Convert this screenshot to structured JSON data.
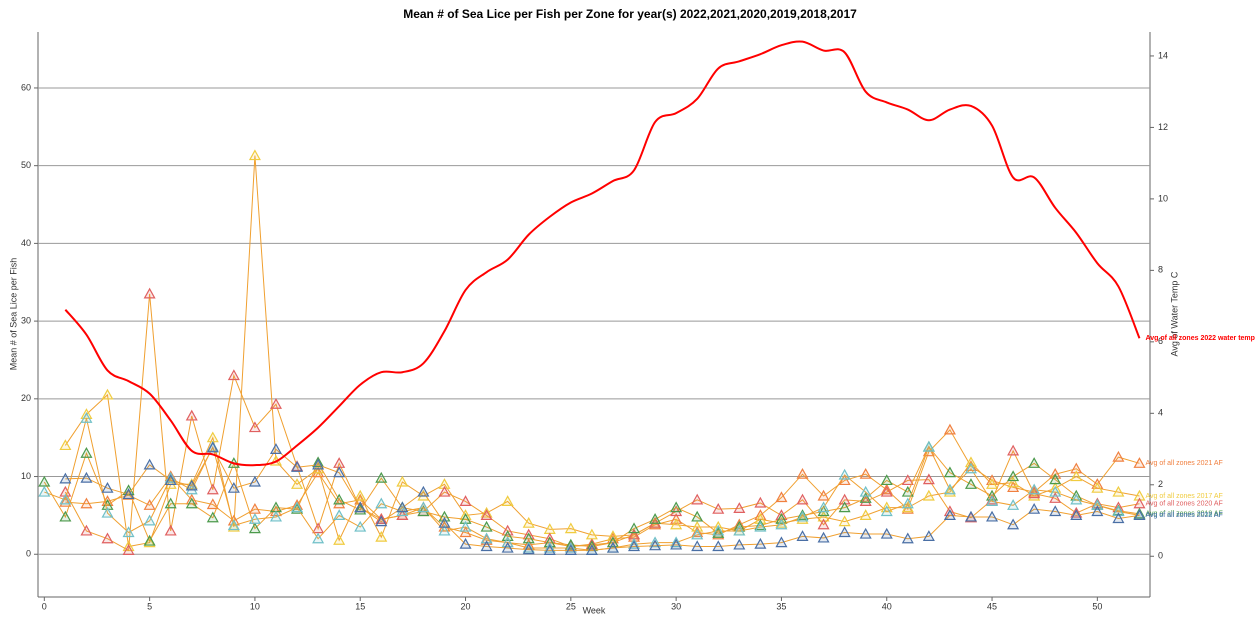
{
  "chart_data": {
    "type": "line",
    "title": "Mean # of Sea Lice per Fish per Zone for year(s) 2022,2021,2020,2019,2018,2017",
    "x_label": "Week",
    "y_label": "Mean # of Sea Lice per Fish",
    "y2_label": "Avg of Water Temp C",
    "x": [
      0,
      1,
      2,
      3,
      4,
      5,
      6,
      7,
      8,
      9,
      10,
      11,
      12,
      13,
      14,
      15,
      16,
      17,
      18,
      19,
      20,
      21,
      22,
      23,
      24,
      25,
      26,
      27,
      28,
      29,
      30,
      31,
      32,
      33,
      34,
      35,
      36,
      37,
      38,
      39,
      40,
      41,
      42,
      43,
      44,
      45,
      46,
      47,
      48,
      49,
      50,
      51,
      52
    ],
    "xlim": [
      -0.3,
      52.5
    ],
    "xticks": [
      0,
      5,
      10,
      15,
      20,
      25,
      30,
      35,
      40,
      45,
      50
    ],
    "ylim": [
      -5.5,
      67.2
    ],
    "yticks": [
      0,
      10,
      20,
      30,
      40,
      50,
      60
    ],
    "y2lim": [
      -1.14,
      14.67
    ],
    "y2ticks": [
      0,
      2,
      4,
      6,
      8,
      10,
      12,
      14
    ],
    "grid": true,
    "line_color": "#f0a030",
    "series": [
      {
        "name": "Avg of all zones 2022 water temp",
        "color": "#ff0000",
        "axis": "y2",
        "values": [
          null,
          6.9,
          6.2,
          5.2,
          4.9,
          4.55,
          3.8,
          2.95,
          2.85,
          2.6,
          2.55,
          2.65,
          3.1,
          3.6,
          4.2,
          4.8,
          5.15,
          5.15,
          5.4,
          6.3,
          7.45,
          7.95,
          8.3,
          9.0,
          9.5,
          9.9,
          10.15,
          10.5,
          10.8,
          12.15,
          12.4,
          12.8,
          13.65,
          13.85,
          14.05,
          14.3,
          14.4,
          14.15,
          14.1,
          13.0,
          12.7,
          12.5,
          12.2,
          12.5,
          12.6,
          12.05,
          10.6,
          10.6,
          9.75,
          9.05,
          8.2,
          7.55,
          6.1
        ]
      },
      {
        "name": "Avg of all zones 2021 AF",
        "color": "#f08040",
        "marker": "triangle",
        "values": [
          null,
          6.7,
          6.5,
          6.8,
          7.6,
          6.3,
          10,
          7,
          6.4,
          4.3,
          5.8,
          5.5,
          6.3,
          10.5,
          6.5,
          7,
          4.5,
          5,
          6,
          3.5,
          2.8,
          1.8,
          1.5,
          1.2,
          1.5,
          1,
          1.3,
          2,
          2.2,
          3.8,
          4.5,
          2.8,
          2.5,
          3.8,
          5,
          7.3,
          10.3,
          7.5,
          9.5,
          10.3,
          8.3,
          5.8,
          13.2,
          16,
          11.3,
          9.5,
          8.6,
          8,
          10.3,
          11,
          9,
          12.5,
          11.7
        ]
      },
      {
        "name": "Avg of all zones 2017 AF",
        "color": "#f0cc40",
        "marker": "triangle",
        "values": [
          null,
          14,
          18,
          20.5,
          1,
          1.5,
          9,
          9,
          15,
          3.5,
          51.3,
          12,
          9,
          11,
          1.8,
          7.5,
          2.2,
          9.3,
          7.5,
          9,
          5,
          5.3,
          6.8,
          4,
          3.2,
          3.3,
          2.5,
          2.3,
          2.5,
          4,
          3.8,
          3.5,
          3.5,
          3,
          4.5,
          4,
          4.5,
          4.8,
          4.2,
          5,
          6,
          6,
          7.5,
          8,
          11.8,
          9,
          9.2,
          7.5,
          8.5,
          10,
          8.5,
          8,
          7.5
        ]
      },
      {
        "name": "Avg of all zones 2020 AF",
        "color": "#e06060",
        "marker": "triangle",
        "values": [
          null,
          8,
          3,
          2,
          0.5,
          33.5,
          3,
          17.8,
          8.3,
          23,
          16.3,
          19.3,
          11.3,
          3.3,
          11.7,
          6,
          4.5,
          5,
          5.5,
          8,
          6.8,
          5,
          3,
          2.5,
          2,
          1,
          1.2,
          1.5,
          2.5,
          4,
          5.5,
          7,
          5.8,
          5.9,
          6.6,
          5,
          7,
          3.8,
          7,
          6.8,
          8,
          9.5,
          9.6,
          5.5,
          4.7,
          7,
          13.3,
          7.8,
          7.2,
          5.3,
          6.5,
          6,
          6.5
        ]
      },
      {
        "name": "Avg of all zones 2019 AF",
        "color": "#4c9a4c",
        "marker": "triangle",
        "values": [
          9.3,
          4.8,
          13,
          6.3,
          8.2,
          1.7,
          6.5,
          6.5,
          4.7,
          11.7,
          3.3,
          6,
          5.8,
          11.8,
          7,
          5.7,
          9.8,
          6,
          5.5,
          4.8,
          4.5,
          3.5,
          2.3,
          2,
          1.5,
          1.2,
          1,
          1.5,
          3.3,
          4.5,
          6,
          4.8,
          2.7,
          3.5,
          3.7,
          4.5,
          5,
          5.5,
          6,
          7.2,
          9.5,
          8,
          13.8,
          10.5,
          9,
          7.5,
          10,
          11.7,
          9.6,
          7.5,
          6.3,
          5.6,
          5.2
        ]
      },
      {
        "name": "Avg of all zones 2018 AF",
        "color": "#70c0c8",
        "marker": "triangle",
        "values": [
          8,
          7,
          17.5,
          5.3,
          2.8,
          4.3,
          9.8,
          8.3,
          13.8,
          3.7,
          4.5,
          4.8,
          6,
          2,
          5,
          3.5,
          6.5,
          5.5,
          6,
          3,
          3.5,
          2,
          1.5,
          0.8,
          0.8,
          0.8,
          0.5,
          0.8,
          1.3,
          1.5,
          1.5,
          2.5,
          3,
          3,
          3.5,
          3.8,
          4.8,
          6,
          10.2,
          8,
          5.5,
          6.5,
          13.8,
          8.3,
          11,
          6.8,
          6.3,
          8.3,
          8,
          7,
          6.3,
          5.5,
          5
        ]
      },
      {
        "name": "Avg of all zones 2022 AF",
        "color": "#4a6fa5",
        "marker": "triangle",
        "values": [
          null,
          9.7,
          9.8,
          8.5,
          7.7,
          11.5,
          9.5,
          8.8,
          13.7,
          8.5,
          9.3,
          13.5,
          11.2,
          11.5,
          10.5,
          6,
          4.2,
          6,
          8,
          4,
          1.3,
          1,
          0.8,
          0.6,
          0.5,
          0.5,
          0.5,
          0.8,
          1,
          1.1,
          1.2,
          1,
          1,
          1.2,
          1.3,
          1.5,
          2.3,
          2.1,
          2.8,
          2.6,
          2.6,
          2,
          2.3,
          5,
          4.8,
          4.8,
          3.8,
          5.8,
          5.5,
          5,
          5.5,
          4.6,
          5
        ]
      }
    ]
  }
}
